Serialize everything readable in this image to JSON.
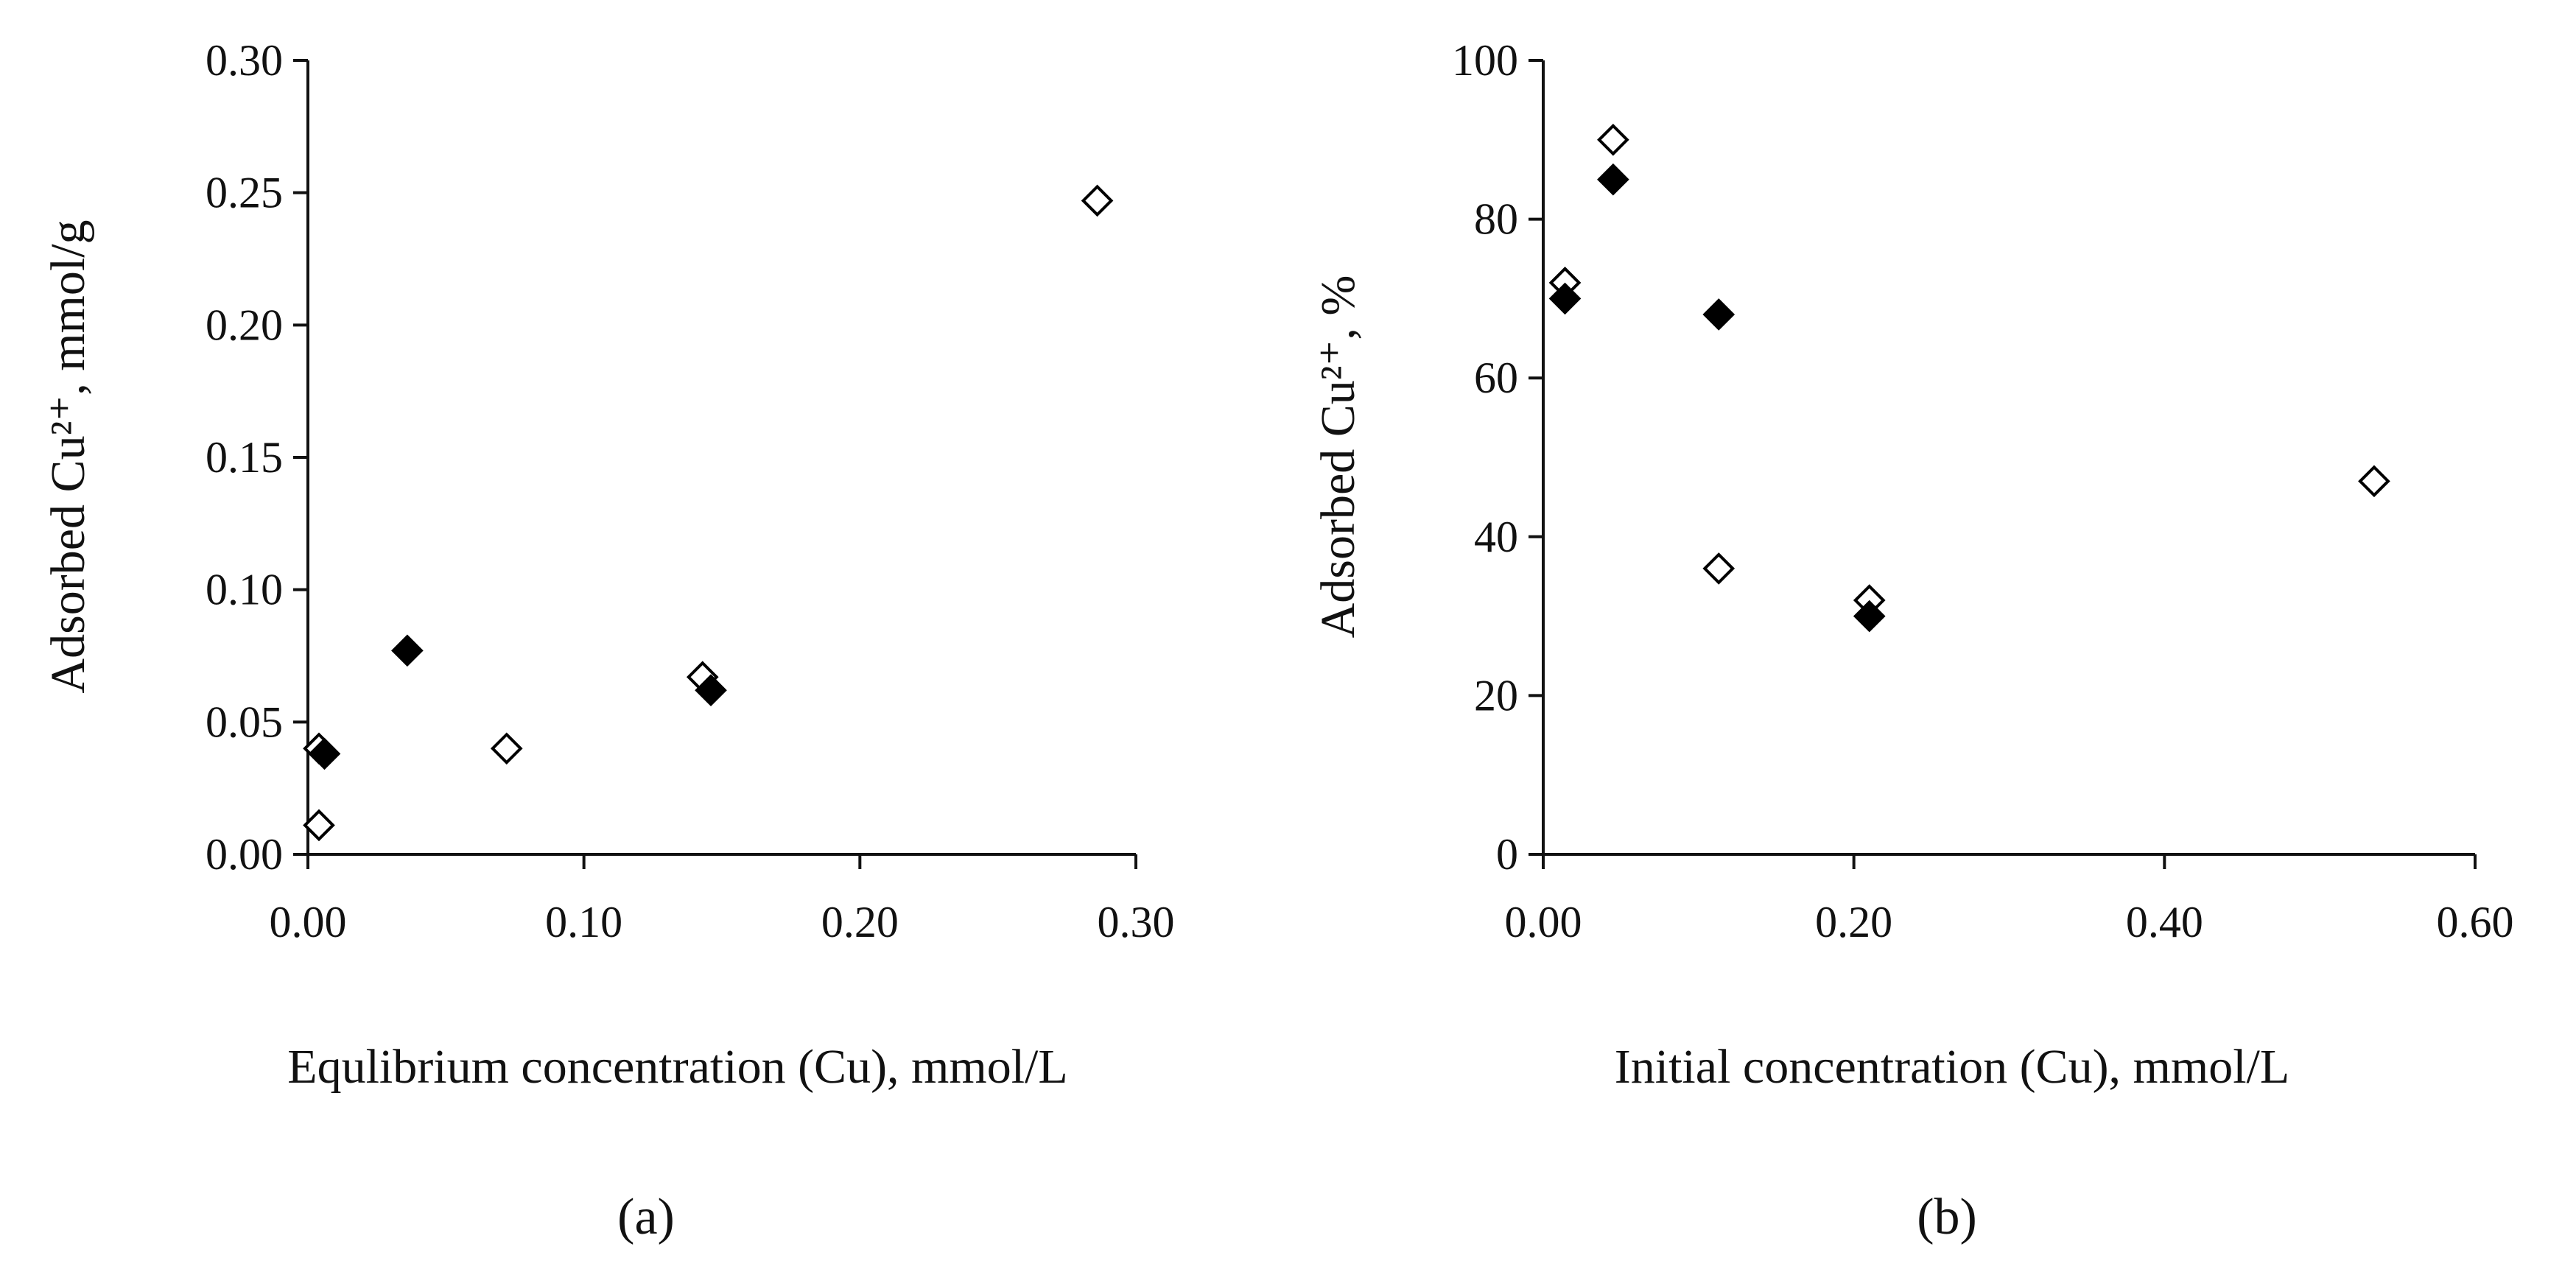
{
  "chart_data": [
    {
      "type": "scatter",
      "panel_label": "(a)",
      "xlabel": "Equlibrium concentration (Cu), mmol/L",
      "ylabel": "Adsorbed Cu²⁺, mmol/g",
      "xlim": [
        0,
        0.3
      ],
      "ylim": [
        0,
        0.3
      ],
      "xticks": [
        "0.00",
        "0.10",
        "0.20",
        "0.30"
      ],
      "xtick_values": [
        0,
        0.1,
        0.2,
        0.3
      ],
      "yticks": [
        "0.00",
        "0.05",
        "0.10",
        "0.15",
        "0.20",
        "0.25",
        "0.30"
      ],
      "ytick_values": [
        0,
        0.05,
        0.1,
        0.15,
        0.2,
        0.25,
        0.3
      ],
      "grid": false,
      "series": [
        {
          "name": "filled",
          "marker": "diamond-filled",
          "points": [
            {
              "x": 0.006,
              "y": 0.038
            },
            {
              "x": 0.036,
              "y": 0.077
            },
            {
              "x": 0.146,
              "y": 0.062
            }
          ]
        },
        {
          "name": "open",
          "marker": "diamond-open",
          "points": [
            {
              "x": 0.004,
              "y": 0.011
            },
            {
              "x": 0.004,
              "y": 0.04
            },
            {
              "x": 0.072,
              "y": 0.04
            },
            {
              "x": 0.143,
              "y": 0.067
            },
            {
              "x": 0.286,
              "y": 0.247
            }
          ]
        }
      ]
    },
    {
      "type": "scatter",
      "panel_label": "(b)",
      "xlabel": "Initial concentration (Cu), mmol/L",
      "ylabel": "Adsorbed Cu²⁺, %",
      "xlim": [
        0,
        0.6
      ],
      "ylim": [
        0,
        100
      ],
      "xticks": [
        "0.00",
        "0.20",
        "0.40",
        "0.60"
      ],
      "xtick_values": [
        0,
        0.2,
        0.4,
        0.6
      ],
      "yticks": [
        "0",
        "20",
        "40",
        "60",
        "80",
        "100"
      ],
      "ytick_values": [
        0,
        20,
        40,
        60,
        80,
        100
      ],
      "grid": false,
      "series": [
        {
          "name": "filled",
          "marker": "diamond-filled",
          "points": [
            {
              "x": 0.014,
              "y": 70
            },
            {
              "x": 0.045,
              "y": 85
            },
            {
              "x": 0.113,
              "y": 68
            },
            {
              "x": 0.21,
              "y": 30
            }
          ]
        },
        {
          "name": "open",
          "marker": "diamond-open",
          "points": [
            {
              "x": 0.014,
              "y": 72
            },
            {
              "x": 0.045,
              "y": 90
            },
            {
              "x": 0.113,
              "y": 36
            },
            {
              "x": 0.21,
              "y": 32
            },
            {
              "x": 0.535,
              "y": 47
            }
          ]
        }
      ]
    }
  ]
}
